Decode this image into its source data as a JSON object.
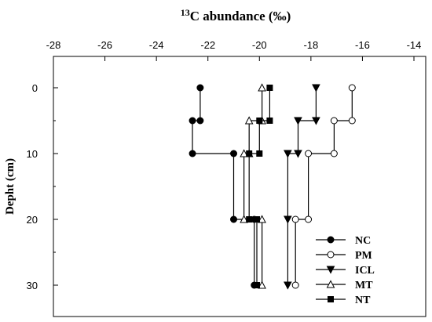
{
  "chart_data": {
    "type": "line",
    "title_sup": "13",
    "title_main": "C abundance (‰)",
    "xlabel": "",
    "ylabel": "Depht (cm)",
    "xlim": [
      -28,
      -14
    ],
    "ylim": [
      0,
      35
    ],
    "x_axis_position": "top",
    "y_reversed": true,
    "x_ticks": [
      "-28",
      "-26",
      "-24",
      "-22",
      "-20",
      "-18",
      "-16",
      "-14"
    ],
    "y_ticks": [
      "0",
      "10",
      "20",
      "30"
    ],
    "grid": false,
    "legend_position": "bottom-right",
    "series": [
      {
        "name": "NC",
        "marker": "filled-circle",
        "points": [
          [
            -22.3,
            0
          ],
          [
            -22.3,
            5
          ],
          [
            -22.6,
            5
          ],
          [
            -22.6,
            10
          ],
          [
            -21.0,
            10
          ],
          [
            -21.0,
            20
          ],
          [
            -20.2,
            20
          ],
          [
            -20.2,
            30
          ]
        ]
      },
      {
        "name": "PM",
        "marker": "open-circle",
        "points": [
          [
            -16.4,
            0
          ],
          [
            -16.4,
            5
          ],
          [
            -17.1,
            5
          ],
          [
            -17.1,
            10
          ],
          [
            -18.1,
            10
          ],
          [
            -18.1,
            20
          ],
          [
            -18.6,
            20
          ],
          [
            -18.6,
            30
          ]
        ]
      },
      {
        "name": "ICL",
        "marker": "filled-triangle-down",
        "points": [
          [
            -17.8,
            0
          ],
          [
            -17.8,
            5
          ],
          [
            -18.5,
            5
          ],
          [
            -18.5,
            10
          ],
          [
            -18.9,
            10
          ],
          [
            -18.9,
            20
          ],
          [
            -18.9,
            30
          ]
        ]
      },
      {
        "name": "MT",
        "marker": "open-triangle-up",
        "points": [
          [
            -19.9,
            0
          ],
          [
            -19.9,
            5
          ],
          [
            -20.4,
            5
          ],
          [
            -20.4,
            10
          ],
          [
            -20.6,
            10
          ],
          [
            -20.6,
            20
          ],
          [
            -19.9,
            20
          ],
          [
            -19.9,
            30
          ]
        ]
      },
      {
        "name": "NT",
        "marker": "filled-square",
        "points": [
          [
            -19.6,
            0
          ],
          [
            -19.6,
            5
          ],
          [
            -20.0,
            5
          ],
          [
            -20.0,
            10
          ],
          [
            -20.4,
            10
          ],
          [
            -20.4,
            20
          ],
          [
            -20.1,
            20
          ],
          [
            -20.1,
            30
          ]
        ]
      }
    ]
  }
}
